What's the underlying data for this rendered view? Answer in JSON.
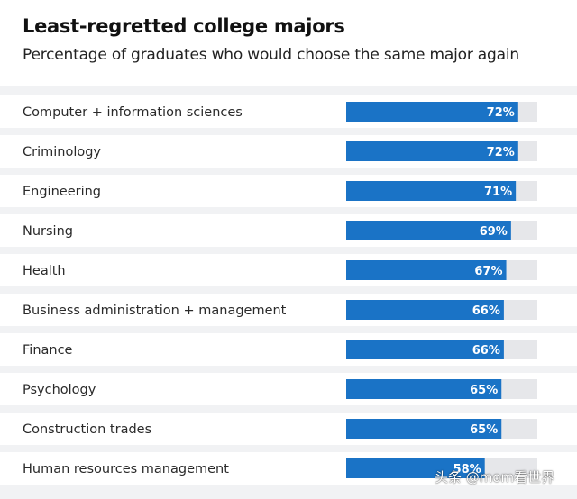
{
  "chart_data": {
    "type": "bar",
    "orientation": "horizontal",
    "title": "Least-regretted college majors",
    "subtitle": "Percentage of graduates who would choose the same major again",
    "categories": [
      "Computer + information sciences",
      "Criminology",
      "Engineering",
      "Nursing",
      "Health",
      "Business administration + management",
      "Finance",
      "Psychology",
      "Construction trades",
      "Human resources management"
    ],
    "values": [
      72,
      72,
      71,
      69,
      67,
      66,
      66,
      65,
      65,
      58
    ],
    "value_labels": [
      "72%",
      "72%",
      "71%",
      "69%",
      "67%",
      "66%",
      "66%",
      "65%",
      "65%",
      "58%"
    ],
    "xlim": [
      0,
      100
    ],
    "grid": false,
    "legend": "none"
  },
  "colors": {
    "bar": "#1a73c6",
    "track": "#e6e7ea",
    "row_band": "#ffffff",
    "label_text": "#2a2a2a",
    "value_text": "#ffffff"
  },
  "watermark": "头条 @mom看世界"
}
